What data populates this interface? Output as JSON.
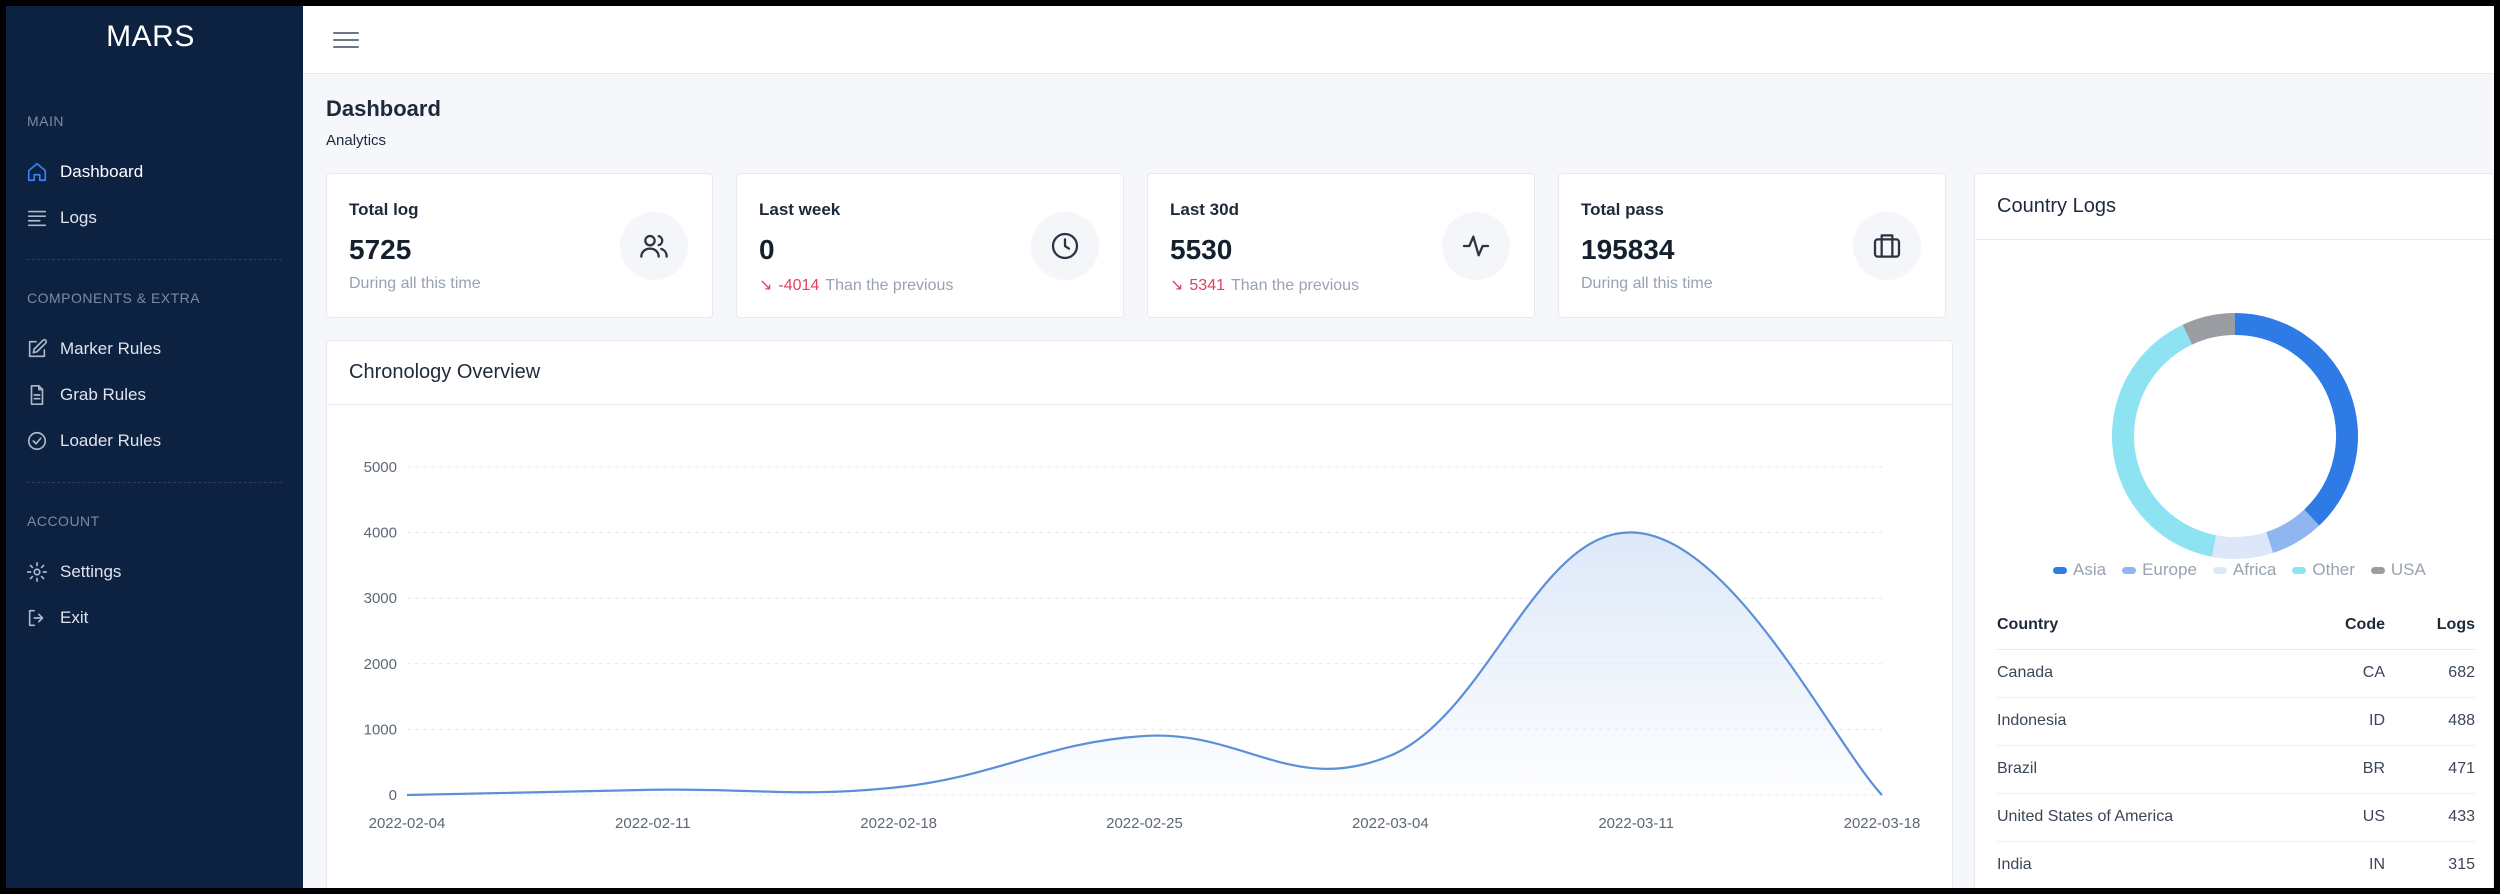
{
  "app": {
    "brand": "MARS"
  },
  "sidebar": {
    "sections": [
      {
        "title": "MAIN"
      },
      {
        "title": "COMPONENTS & EXTRA"
      },
      {
        "title": "ACCOUNT"
      }
    ],
    "items": {
      "dashboard": {
        "label": "Dashboard",
        "icon": "home-icon"
      },
      "logs": {
        "label": "Logs",
        "icon": "list-icon"
      },
      "marker_rules": {
        "label": "Marker Rules",
        "icon": "edit-icon"
      },
      "grab_rules": {
        "label": "Grab Rules",
        "icon": "file-icon"
      },
      "loader_rules": {
        "label": "Loader Rules",
        "icon": "check-circle-icon"
      },
      "settings": {
        "label": "Settings",
        "icon": "gear-icon"
      },
      "exit": {
        "label": "Exit",
        "icon": "logout-icon"
      }
    }
  },
  "page": {
    "title": "Dashboard",
    "subtitle": "Analytics"
  },
  "stats": [
    {
      "label": "Total log",
      "value": "5725",
      "delta": "",
      "foot": "During all this time",
      "icon": "users-icon"
    },
    {
      "label": "Last week",
      "value": "0",
      "delta": "-4014",
      "foot": "Than the previous",
      "icon": "clock-icon"
    },
    {
      "label": "Last 30d",
      "value": "5530",
      "delta": "5341",
      "foot": "Than the previous",
      "icon": "activity-icon"
    },
    {
      "label": "Total pass",
      "value": "195834",
      "delta": "",
      "foot": "During all this time",
      "icon": "briefcase-icon"
    }
  ],
  "chronology": {
    "title": "Chronology Overview"
  },
  "chart_data": [
    {
      "type": "area",
      "title": "Chronology Overview",
      "x": [
        "2022-02-04",
        "2022-02-11",
        "2022-02-18",
        "2022-02-25",
        "2022-03-04",
        "2022-03-11",
        "2022-03-18"
      ],
      "values": [
        0,
        80,
        120,
        900,
        600,
        4000,
        0
      ],
      "ylim": [
        0,
        5000
      ],
      "yticks": [
        0,
        1000,
        2000,
        3000,
        4000,
        5000
      ],
      "grid": true,
      "colors": {
        "line": "#5b8fd8",
        "fill": "#dbe7f8"
      }
    },
    {
      "type": "pie",
      "title": "Country Logs",
      "categories": [
        "Asia",
        "Europe",
        "Africa",
        "Other",
        "USA"
      ],
      "values": [
        38,
        7,
        8,
        40,
        7
      ],
      "colors": [
        "#2e7be6",
        "#8fb6f0",
        "#dce7fa",
        "#8de3f2",
        "#9a9ea3"
      ]
    }
  ],
  "country": {
    "title": "Country Logs",
    "legend": [
      "Asia",
      "Europe",
      "Africa",
      "Other",
      "USA"
    ],
    "table": {
      "headers": [
        "Country",
        "Code",
        "Logs"
      ],
      "rows": [
        [
          "Canada",
          "CA",
          "682"
        ],
        [
          "Indonesia",
          "ID",
          "488"
        ],
        [
          "Brazil",
          "BR",
          "471"
        ],
        [
          "United States of America",
          "US",
          "433"
        ],
        [
          "India",
          "IN",
          "315"
        ]
      ]
    }
  }
}
